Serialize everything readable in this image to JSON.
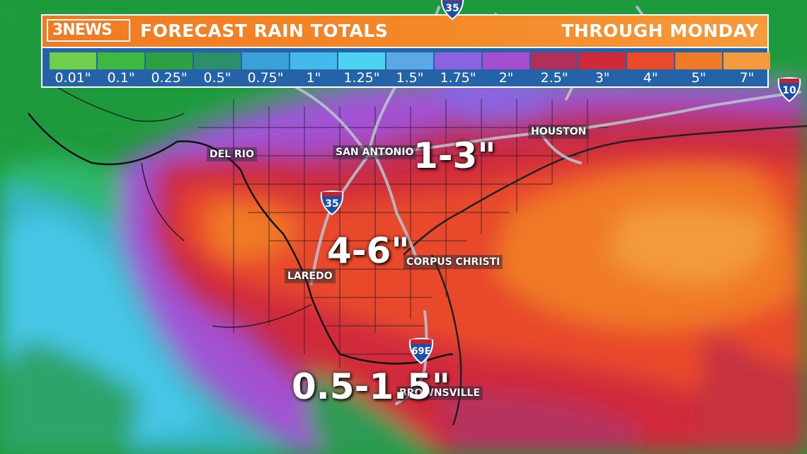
{
  "header": {
    "logo_text": "3NEWS",
    "title": "FORECAST RAIN TOTALS",
    "subtitle": "THROUGH MONDAY"
  },
  "legend": [
    {
      "label": "0.01\"",
      "color": "#6fcf4a"
    },
    {
      "label": "0.1\"",
      "color": "#3fb83f"
    },
    {
      "label": "0.25\"",
      "color": "#2ea043"
    },
    {
      "label": "0.5\"",
      "color": "#2b8f6a"
    },
    {
      "label": "0.75\"",
      "color": "#39a0d8"
    },
    {
      "label": "1\"",
      "color": "#45b8ec"
    },
    {
      "label": "1.25\"",
      "color": "#4fd2f2"
    },
    {
      "label": "1.5\"",
      "color": "#5aa8e6"
    },
    {
      "label": "1.75\"",
      "color": "#8a64e0"
    },
    {
      "label": "2\"",
      "color": "#a64ed0"
    },
    {
      "label": "2.5\"",
      "color": "#b0305a"
    },
    {
      "label": "3\"",
      "color": "#d02a3a"
    },
    {
      "label": "4\"",
      "color": "#ea4a2a"
    },
    {
      "label": "5\"",
      "color": "#f07a28"
    },
    {
      "label": "7\"",
      "color": "#f39a3c"
    }
  ],
  "cities": [
    {
      "key": "houston",
      "name": "HOUSTON"
    },
    {
      "key": "san_antonio",
      "name": "SAN ANTONIO"
    },
    {
      "key": "del_rio",
      "name": "DEL RIO"
    },
    {
      "key": "laredo",
      "name": "LAREDO"
    },
    {
      "key": "corpus_christi",
      "name": "CORPUS CHRISTI"
    },
    {
      "key": "brownsville",
      "name": "BROWNSVILLE"
    }
  ],
  "amounts": [
    {
      "key": "north",
      "text": "1-3\""
    },
    {
      "key": "central",
      "text": "4-6\""
    },
    {
      "key": "south",
      "text": "0.5-1.5\""
    }
  ],
  "highways": [
    {
      "key": "i35_top",
      "number": "35"
    },
    {
      "key": "i35_mid",
      "number": "35"
    },
    {
      "key": "i10",
      "number": "10"
    },
    {
      "key": "i69e",
      "number": "69E"
    }
  ]
}
